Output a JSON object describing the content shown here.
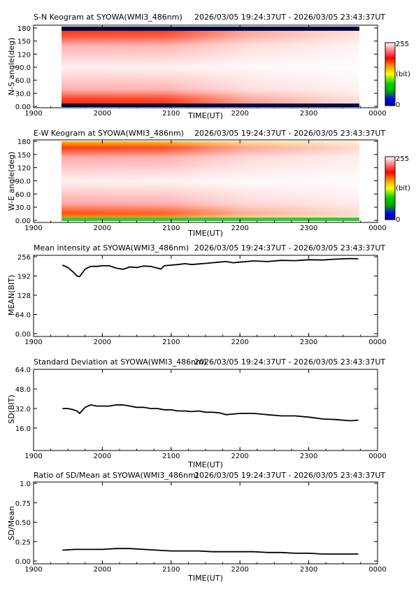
{
  "colors": {
    "frame": "#000000",
    "line": "#000000",
    "keogram_dark_band": "#00003a",
    "colorbar": [
      "#000080",
      "#0000ff",
      "#00a000",
      "#00d000",
      "#ffff00",
      "#ffa000",
      "#ff0000",
      "#ff8080",
      "#ffffff"
    ]
  },
  "chart_data": [
    {
      "type": "heatmap",
      "title": "S-N Keogram at SYOWA(WMI3_486nm)",
      "time_range": "2026/03/05 19:24:37UT - 2026/03/05 23:43:37UT",
      "xlabel": "TIME(UT)",
      "ylabel": "N-S angle(deg)",
      "xticks": [
        "1900",
        "2000",
        "2100",
        "2200",
        "2300",
        "0000"
      ],
      "yticks": [
        "0.00",
        "30.0",
        "60.0",
        "90.0",
        "120",
        "150",
        "180"
      ],
      "xlim": [
        19.0,
        24.0
      ],
      "ylim": [
        0,
        180
      ],
      "data_xrange": [
        19.41,
        23.73
      ],
      "colorbar": {
        "max_label": "255",
        "unit_label": "(bit)",
        "min_label": "0",
        "range": [
          0,
          255
        ]
      }
    },
    {
      "type": "heatmap",
      "title": "E-W Keogram at SYOWA(WMI3_486nm)",
      "time_range": "2026/03/05 19:24:37UT - 2026/03/05 23:43:37UT",
      "xlabel": "TIME(UT)",
      "ylabel": "W-E angle(deg)",
      "xticks": [
        "1900",
        "2000",
        "2100",
        "2200",
        "2300",
        "0000"
      ],
      "yticks": [
        "0.00",
        "30.0",
        "60.0",
        "90.0",
        "120",
        "150",
        "180"
      ],
      "xlim": [
        19.0,
        24.0
      ],
      "ylim": [
        0,
        180
      ],
      "data_xrange": [
        19.41,
        23.73
      ],
      "colorbar": {
        "max_label": "255",
        "unit_label": "(bit)",
        "min_label": "0",
        "range": [
          0,
          255
        ]
      }
    },
    {
      "type": "line",
      "title": "Mean intensity at SYOWA(WMI3_486nm)",
      "time_range": "2026/03/05 19:24:37UT - 2026/03/05 23:43:37UT",
      "xlabel": "",
      "ylabel": "MEAN(BIT)",
      "xticks": [
        "1900",
        "2000",
        "2100",
        "2200",
        "2300",
        "0000"
      ],
      "yticks": [
        "0.00",
        "64.0",
        "128",
        "192",
        "256"
      ],
      "xlim": [
        19.0,
        24.0
      ],
      "ylim": [
        0,
        256
      ],
      "x": [
        19.42,
        19.5,
        19.58,
        19.63,
        19.67,
        19.75,
        19.83,
        19.92,
        20.0,
        20.1,
        20.2,
        20.3,
        20.4,
        20.5,
        20.6,
        20.7,
        20.8,
        20.85,
        20.9,
        21.0,
        21.1,
        21.2,
        21.3,
        21.4,
        21.5,
        21.6,
        21.7,
        21.8,
        21.9,
        22.0,
        22.2,
        22.4,
        22.6,
        22.8,
        23.0,
        23.2,
        23.4,
        23.6,
        23.72
      ],
      "values": [
        228,
        220,
        204,
        192,
        190,
        215,
        224,
        224,
        226,
        226,
        218,
        214,
        222,
        220,
        225,
        224,
        218,
        215,
        226,
        228,
        230,
        233,
        230,
        232,
        234,
        236,
        238,
        240,
        236,
        238,
        242,
        240,
        244,
        243,
        246,
        245,
        248,
        250,
        249
      ]
    },
    {
      "type": "line",
      "title": "Standard Deviation at SYOWA(WMI3_486nm)",
      "time_range": "2026/03/05 19:24:37UT - 2026/03/05 23:43:37UT",
      "xlabel": "TIME(UT)",
      "ylabel": "SD(BIT)",
      "xticks": [
        "1900",
        "2000",
        "2100",
        "2200",
        "2300",
        "0000"
      ],
      "yticks": [
        "16.0",
        "32.0",
        "48.0",
        "64.0"
      ],
      "xlim": [
        19.0,
        24.0
      ],
      "ylim": [
        0,
        64
      ],
      "x": [
        19.42,
        19.5,
        19.58,
        19.63,
        19.67,
        19.75,
        19.83,
        19.92,
        20.0,
        20.1,
        20.2,
        20.3,
        20.4,
        20.5,
        20.6,
        20.7,
        20.8,
        20.9,
        21.0,
        21.1,
        21.2,
        21.3,
        21.4,
        21.5,
        21.6,
        21.7,
        21.8,
        21.9,
        22.0,
        22.2,
        22.4,
        22.6,
        22.8,
        23.0,
        23.2,
        23.4,
        23.6,
        23.72
      ],
      "values": [
        32,
        32,
        31,
        30,
        28,
        33,
        35,
        34,
        34,
        34,
        35,
        35,
        34,
        33,
        33,
        32,
        32,
        31,
        31,
        30,
        30,
        29.5,
        30,
        29,
        29,
        28.5,
        27,
        27.5,
        28,
        28,
        27,
        26,
        26,
        25,
        23.5,
        23,
        22,
        22.5
      ]
    },
    {
      "type": "line",
      "title": "Ratio of SD/Mean at SYOWA(WMI3_486nm)",
      "time_range": "2026/03/05 19:24:37UT - 2026/03/05 23:43:37UT",
      "xlabel": "TIME(UT)",
      "ylabel": "SD/Mean",
      "xticks": [
        "1900",
        "2000",
        "2100",
        "2200",
        "2300",
        "0000"
      ],
      "yticks": [
        "0.00",
        "0.25",
        "0.50",
        "0.75",
        "1.0"
      ],
      "xlim": [
        19.0,
        24.0
      ],
      "ylim": [
        0,
        1.0
      ],
      "x": [
        19.42,
        19.6,
        19.8,
        20.0,
        20.2,
        20.4,
        20.6,
        20.8,
        21.0,
        21.2,
        21.4,
        21.6,
        21.8,
        22.0,
        22.2,
        22.4,
        22.6,
        22.8,
        23.0,
        23.2,
        23.4,
        23.6,
        23.72
      ],
      "values": [
        0.14,
        0.15,
        0.15,
        0.15,
        0.16,
        0.16,
        0.15,
        0.14,
        0.13,
        0.13,
        0.13,
        0.12,
        0.12,
        0.12,
        0.12,
        0.11,
        0.11,
        0.1,
        0.1,
        0.09,
        0.09,
        0.09,
        0.09
      ]
    }
  ]
}
